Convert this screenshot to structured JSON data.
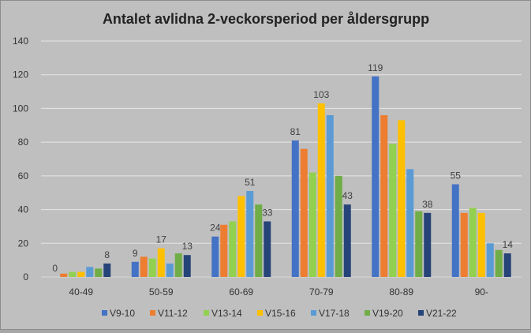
{
  "chart_data": {
    "type": "bar",
    "title": "Antalet avlidna 2-veckorsperiod per åldersgrupp",
    "xlabel": "",
    "ylabel": "",
    "ylim": [
      0,
      140
    ],
    "yticks": [
      0,
      20,
      40,
      60,
      80,
      100,
      120,
      140
    ],
    "grid": true,
    "legend_position": "bottom",
    "categories": [
      "40-49",
      "50-59",
      "60-69",
      "70-79",
      "80-89",
      "90-"
    ],
    "series": [
      {
        "name": "V9-10",
        "color": "#4472c4",
        "values": [
          0,
          9,
          24,
          81,
          119,
          55
        ],
        "labeled": true
      },
      {
        "name": "V11-12",
        "color": "#ed7d31",
        "values": [
          2,
          12,
          31,
          76,
          96,
          38
        ]
      },
      {
        "name": "V13-14",
        "color": "#92d050",
        "values": [
          3,
          11,
          33,
          62,
          79,
          41
        ]
      },
      {
        "name": "V15-16",
        "color": "#ffc000",
        "values": [
          3,
          17,
          48,
          103,
          93,
          38
        ],
        "labels": [
          null,
          17,
          null,
          103,
          null,
          null
        ]
      },
      {
        "name": "V17-18",
        "color": "#5b9bd5",
        "values": [
          6,
          8,
          51,
          96,
          64,
          20
        ],
        "labels": [
          null,
          null,
          51,
          null,
          null,
          null
        ]
      },
      {
        "name": "V19-20",
        "color": "#70ad47",
        "values": [
          5,
          14,
          43,
          60,
          39,
          16
        ]
      },
      {
        "name": "V21-22",
        "color": "#264478",
        "values": [
          8,
          13,
          33,
          43,
          38,
          14
        ],
        "labeled": true
      }
    ]
  }
}
